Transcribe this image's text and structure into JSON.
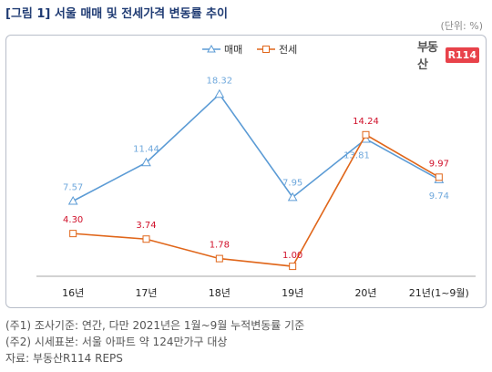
{
  "title": "[그림 1] 서울 매매 및 전세가격 변동률 추이",
  "unit": "(단위: %)",
  "logo": {
    "text": "부동산",
    "box": "R114"
  },
  "notes": [
    "(주1) 조사기준: 연간, 다만 2021년은 1월~9월 누적변동률 기준",
    "(주2) 시세표본: 서울 아파트 약 124만가구 대상",
    "자료: 부동산R114 REPS"
  ],
  "chart_data": {
    "type": "line",
    "categories": [
      "16년",
      "17년",
      "18년",
      "19년",
      "20년",
      "21년(1~9월)"
    ],
    "series": [
      {
        "name": "매매",
        "color": "#5b9bd5",
        "marker": "triangle",
        "values": [
          7.57,
          11.44,
          18.32,
          7.95,
          13.81,
          9.74
        ],
        "labels": [
          "7.57",
          "11.44",
          "18.32",
          "7.95",
          "13.81",
          "9.74"
        ]
      },
      {
        "name": "전세",
        "color": "#e0661a",
        "marker": "square",
        "values": [
          4.3,
          3.74,
          1.78,
          1.0,
          14.24,
          9.97
        ],
        "labels": [
          "4.30",
          "3.74",
          "1.78",
          "1.00",
          "14.24",
          "9.97"
        ]
      }
    ],
    "series_label_colors": [
      "#6fa8dc",
      "#d0102a"
    ],
    "ylim": [
      0,
      20
    ],
    "legend": "top-center",
    "grid": false
  }
}
